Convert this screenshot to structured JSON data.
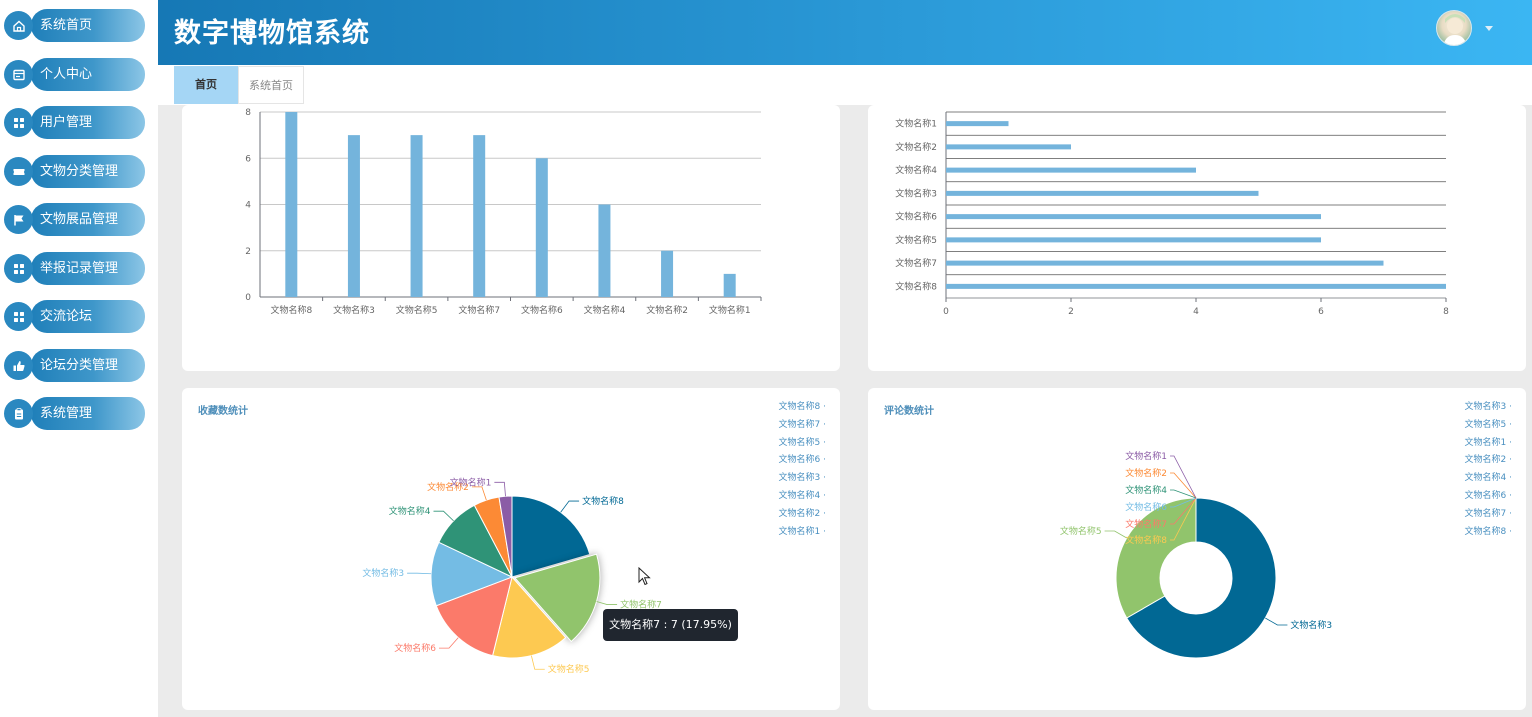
{
  "header": {
    "title": "数字博物馆系统"
  },
  "sidebar": {
    "items": [
      {
        "label": "系统首页",
        "icon": "home-icon"
      },
      {
        "label": "个人中心",
        "icon": "profile-card-icon"
      },
      {
        "label": "用户管理",
        "icon": "grid-icon"
      },
      {
        "label": "文物分类管理",
        "icon": "ticket-icon"
      },
      {
        "label": "文物展品管理",
        "icon": "flag-icon"
      },
      {
        "label": "举报记录管理",
        "icon": "grid-icon"
      },
      {
        "label": "交流论坛",
        "icon": "grid-icon"
      },
      {
        "label": "论坛分类管理",
        "icon": "thumb-up-icon"
      },
      {
        "label": "系统管理",
        "icon": "clipboard-icon"
      }
    ]
  },
  "tabs": [
    {
      "label": "首页",
      "active": true
    },
    {
      "label": "系统首页",
      "active": false
    }
  ],
  "colors": {
    "bar": "#74b4dc",
    "pie": [
      "#016894",
      "#91c46c",
      "#fdc951",
      "#fb7a6a",
      "#74bce4",
      "#2f9377",
      "#fc8a35",
      "#8b5ca6"
    ]
  },
  "chart_data": [
    {
      "type": "bar",
      "categories": [
        "文物名称8",
        "文物名称3",
        "文物名称5",
        "文物名称7",
        "文物名称6",
        "文物名称4",
        "文物名称2",
        "文物名称1"
      ],
      "values": [
        8,
        7,
        7,
        7,
        6,
        4,
        2,
        1
      ],
      "ylim": [
        0,
        8
      ],
      "yticks": [
        0,
        2,
        4,
        6,
        8
      ],
      "grid": true
    },
    {
      "type": "bar",
      "orientation": "horizontal",
      "categories": [
        "文物名称1",
        "文物名称2",
        "文物名称4",
        "文物名称3",
        "文物名称6",
        "文物名称5",
        "文物名称7",
        "文物名称8"
      ],
      "values": [
        1,
        2,
        4,
        5,
        6,
        6,
        7,
        8
      ],
      "xlim": [
        0,
        8
      ],
      "xticks": [
        0,
        2,
        4,
        6,
        8
      ],
      "grid": true
    },
    {
      "type": "pie",
      "title": "收藏数统计",
      "labels": [
        "文物名称8",
        "文物名称7",
        "文物名称5",
        "文物名称6",
        "文物名称3",
        "文物名称4",
        "文物名称2",
        "文物名称1"
      ],
      "values": [
        8,
        7,
        6,
        6,
        5,
        4,
        2,
        1
      ],
      "legend": [
        "文物名称8",
        "文物名称7",
        "文物名称5",
        "文物名称6",
        "文物名称3",
        "文物名称4",
        "文物名称2",
        "文物名称1"
      ],
      "legend_position": "top-right",
      "highlighted": "文物名称7",
      "tooltip": "文物名称7 : 7 (17.95%)"
    },
    {
      "type": "pie",
      "subtype": "donut",
      "title": "评论数统计",
      "labels": [
        "文物名称3",
        "文物名称5",
        "文物名称8",
        "文物名称7",
        "文物名称6",
        "文物名称4",
        "文物名称2",
        "文物名称1"
      ],
      "values": [
        2,
        1,
        0,
        0,
        0,
        0,
        0,
        0
      ],
      "legend": [
        "文物名称3",
        "文物名称5",
        "文物名称1",
        "文物名称2",
        "文物名称4",
        "文物名称6",
        "文物名称7",
        "文物名称8"
      ],
      "legend_position": "top-right"
    }
  ]
}
